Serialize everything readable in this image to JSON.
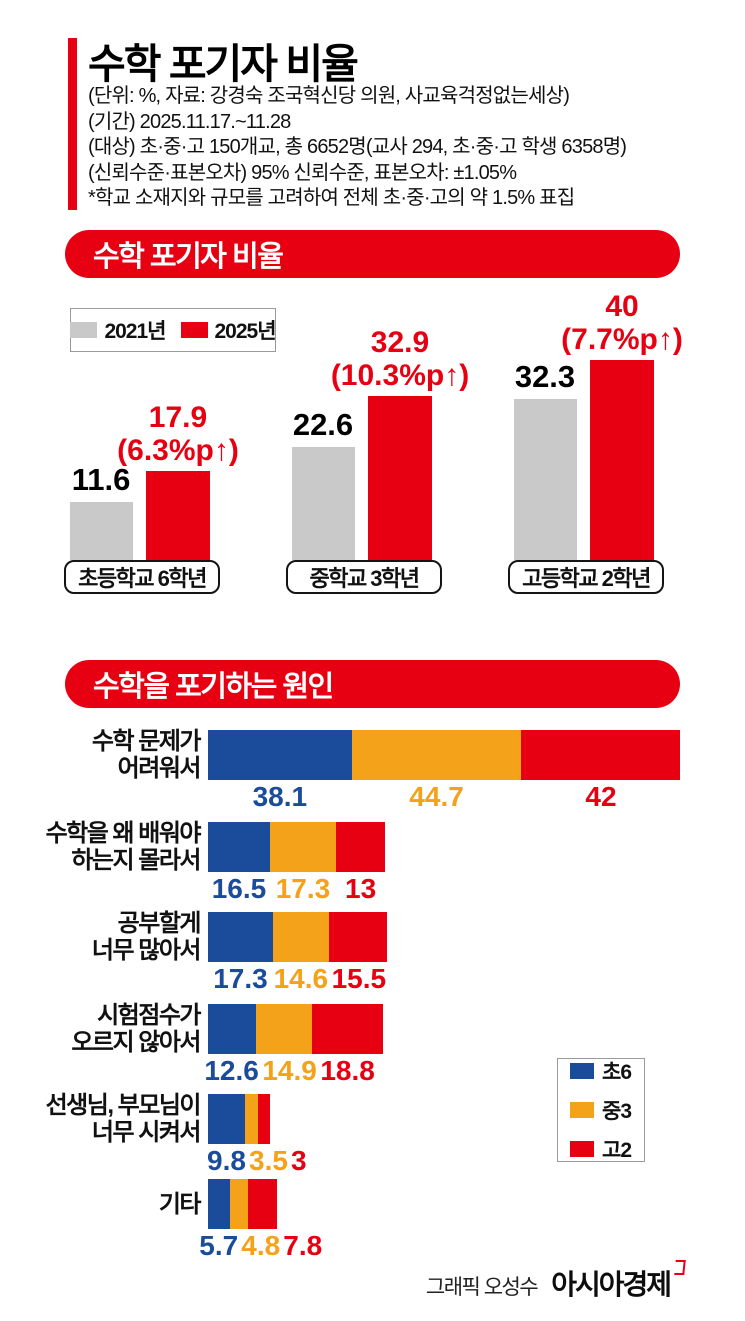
{
  "colors": {
    "red": "#e60012",
    "gray": "#c9c9c9",
    "blue": "#1b4c9b",
    "orange": "#f5a21b"
  },
  "header": {
    "title": "수학 포기자 비율",
    "meta_lines": [
      "(단위: %, 자료: 강경숙 조국혁신당 의원, 사교육걱정없는세상)",
      "(기간) 2025.11.17.~11.28",
      "(대상) 초·중·고 150개교, 총 6652명(교사 294, 초·중·고 학생 6358명)",
      "(신뢰수준·표본오차) 95% 신뢰수준, 표본오차: ±1.05%",
      "*학교 소재지와 규모를 고려하여 전체 초·중·고의 약 1.5% 표집"
    ]
  },
  "section1": {
    "banner": "수학 포기자 비율",
    "legend": [
      {
        "label": "2021년"
      },
      {
        "label": "2025년"
      }
    ],
    "groups": [
      {
        "category": "초등학교 6학년",
        "prev": "11.6",
        "curr": "17.9",
        "delta": "(6.3%p↑)"
      },
      {
        "category": "중학교 3학년",
        "prev": "22.6",
        "curr": "32.9",
        "delta": "(10.3%p↑)"
      },
      {
        "category": "고등학교 2학년",
        "prev": "32.3",
        "curr": "40",
        "delta": "(7.7%p↑)"
      }
    ]
  },
  "section2": {
    "banner": "수학을 포기하는 원인",
    "legend": [
      {
        "label": "초6"
      },
      {
        "label": "중3"
      },
      {
        "label": "고2"
      }
    ],
    "rows": [
      {
        "label1": "수학 문제가",
        "label2": "어려워서",
        "v0": "38.1",
        "v1": "44.7",
        "v2": "42"
      },
      {
        "label1": "수학을 왜 배워야",
        "label2": "하는지 몰라서",
        "v0": "16.5",
        "v1": "17.3",
        "v2": "13"
      },
      {
        "label1": "공부할게",
        "label2": "너무 많아서",
        "v0": "17.3",
        "v1": "14.6",
        "v2": "15.5"
      },
      {
        "label1": "시험점수가",
        "label2": "오르지 않아서",
        "v0": "12.6",
        "v1": "14.9",
        "v2": "18.8"
      },
      {
        "label1": "선생님, 부모님이",
        "label2": "너무 시켜서",
        "v0": "9.8",
        "v1": "3.5",
        "v2": "3"
      },
      {
        "label1": "기타",
        "label2": "",
        "v0": "5.7",
        "v1": "4.8",
        "v2": "7.8"
      }
    ]
  },
  "footer": {
    "credit": "그래픽 오성수",
    "brand": "아시아경제"
  },
  "chart_data": [
    {
      "type": "bar",
      "title": "수학 포기자 비율",
      "unit": "%",
      "categories": [
        "초등학교 6학년",
        "중학교 3학년",
        "고등학교 2학년"
      ],
      "series": [
        {
          "name": "2021년",
          "color": "#c9c9c9",
          "values": [
            11.6,
            22.6,
            32.3
          ]
        },
        {
          "name": "2025년",
          "color": "#e60012",
          "values": [
            17.9,
            32.9,
            40
          ]
        }
      ],
      "annotations": [
        "(6.3%p↑)",
        "(10.3%p↑)",
        "(7.7%p↑)"
      ],
      "ylim": [
        0,
        45
      ],
      "grid": false,
      "legend_position": "top-left"
    },
    {
      "type": "bar",
      "orientation": "horizontal-grouped",
      "title": "수학을 포기하는 원인",
      "unit": "%",
      "categories": [
        "수학 문제가 어려워서",
        "수학을 왜 배워야 하는지 몰라서",
        "공부할게 너무 많아서",
        "시험점수가 오르지 않아서",
        "선생님, 부모님이 너무 시켜서",
        "기타"
      ],
      "series": [
        {
          "name": "초6",
          "color": "#1b4c9b",
          "values": [
            38.1,
            16.5,
            17.3,
            12.6,
            9.8,
            5.7
          ]
        },
        {
          "name": "중3",
          "color": "#f5a21b",
          "values": [
            44.7,
            17.3,
            14.6,
            14.9,
            3.5,
            4.8
          ]
        },
        {
          "name": "고2",
          "color": "#e60012",
          "values": [
            42,
            13,
            15.5,
            18.8,
            3,
            7.8
          ]
        }
      ],
      "xlim": [
        0,
        50
      ],
      "grid": false,
      "legend_position": "right"
    }
  ]
}
